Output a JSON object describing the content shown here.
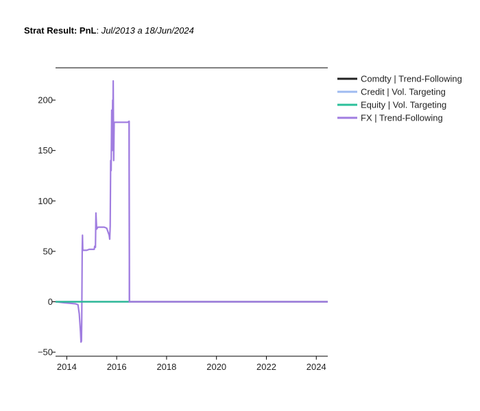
{
  "title": {
    "bold": "Strat Result: PnL",
    "sep": ": ",
    "italic": "Jul/2013 a 18/Jun/2024"
  },
  "chart_data": {
    "type": "line",
    "xlabel": "",
    "ylabel": "",
    "xlim": [
      2013.55,
      2024.46
    ],
    "ylim": [
      -54,
      232
    ],
    "x_ticks": [
      2014,
      2016,
      2018,
      2020,
      2022,
      2024
    ],
    "x_tick_labels": [
      "2014",
      "2016",
      "2018",
      "2020",
      "2022",
      "2024"
    ],
    "y_ticks": [
      -50,
      0,
      50,
      100,
      150,
      200
    ],
    "y_tick_labels": [
      "−50",
      "0",
      "50",
      "100",
      "150",
      "200"
    ],
    "grid": false,
    "legend_position": "right",
    "series": [
      {
        "name": "Comdty | Trend-Following",
        "color": "#222222",
        "x": [
          2013.55,
          2024.46
        ],
        "y": [
          0,
          0
        ]
      },
      {
        "name": "Credit | Vol. Targeting",
        "color": "#9fbbf0",
        "x": [
          2013.55,
          2024.46
        ],
        "y": [
          0,
          0
        ]
      },
      {
        "name": "Equity | Vol. Targeting",
        "color": "#2bbf9a",
        "x": [
          2013.55,
          2016.5
        ],
        "y": [
          0,
          0
        ]
      },
      {
        "name": "FX | Trend-Following",
        "color": "#a07de0",
        "x": [
          2013.55,
          2013.9,
          2014.1,
          2014.35,
          2014.45,
          2014.5,
          2014.55,
          2014.57,
          2014.59,
          2014.6,
          2014.62,
          2014.63,
          2014.64,
          2014.65,
          2014.7,
          2014.8,
          2014.9,
          2015.0,
          2015.1,
          2015.12,
          2015.15,
          2015.17,
          2015.2,
          2015.22,
          2015.25,
          2015.35,
          2015.5,
          2015.6,
          2015.7,
          2015.72,
          2015.74,
          2015.76,
          2015.78,
          2015.8,
          2015.82,
          2015.84,
          2015.85,
          2015.86,
          2015.88,
          2015.9,
          2015.92,
          2016.0,
          2016.2,
          2016.45,
          2016.5,
          2016.51,
          2016.53,
          2016.6,
          2017.0,
          2020.0,
          2024.46
        ],
        "y": [
          0,
          -1,
          -1.5,
          -2,
          -3,
          -12,
          -30,
          -40,
          -39,
          -20,
          52,
          66,
          52,
          51,
          51,
          51,
          52,
          52,
          52,
          55,
          54,
          88,
          72,
          73,
          74,
          74,
          74,
          73,
          66,
          62,
          75,
          140,
          130,
          190,
          150,
          200,
          178,
          219,
          140,
          178,
          178,
          178,
          178,
          178,
          179,
          0,
          0,
          0,
          0,
          0,
          0
        ]
      }
    ]
  }
}
